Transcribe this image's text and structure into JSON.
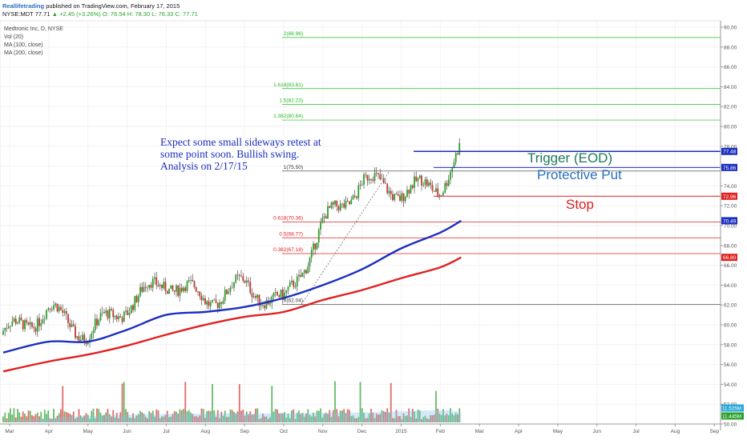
{
  "header": {
    "author": "Reallifetrading",
    "published": "published on TradingView.com, February 17, 2015",
    "symbol": "NYSE:MDT",
    "last": "77.71",
    "change": "▲ +2.45 (+3.26%)",
    "o": "O: 76.54",
    "h": "H: 78.30",
    "l": "L: 76.33",
    "c": "C: 77.71"
  },
  "legend": {
    "title": "Medtronic Inc, D, NYSE",
    "vol": "Vol (20)",
    "ma100": "MA (100, close)",
    "ma200": "MA (200, close)"
  },
  "annotation": "Expect some small sideways retest at some point soon. Bullish swing. Analysis on 2/17/15",
  "labels": {
    "trigger": "Trigger (EOD)",
    "put": "Protective Put",
    "stop": "Stop"
  },
  "fib_levels": [
    {
      "label": "2(88.96)",
      "value": 88.96,
      "color": "#22bb22"
    },
    {
      "label": "1.618(83.81)",
      "value": 83.81,
      "color": "#22bb22"
    },
    {
      "label": "1.5(82.23)",
      "value": 82.23,
      "color": "#22bb22"
    },
    {
      "label": "1.382(80.64)",
      "value": 80.64,
      "color": "#22bb22"
    },
    {
      "label": "1(75.50)",
      "value": 75.5,
      "color": "#333333"
    },
    {
      "label": "0.618(70.36)",
      "value": 70.36,
      "color": "#e02020"
    },
    {
      "label": "0.5(68.77)",
      "value": 68.77,
      "color": "#e02020"
    },
    {
      "label": "0.382(67.18)",
      "value": 67.18,
      "color": "#e02020"
    },
    {
      "label": "0(62.04)",
      "value": 62.04,
      "color": "#333333"
    }
  ],
  "price_tags": [
    {
      "text": "77.48",
      "value": 77.48,
      "color": "#1a2fbf"
    },
    {
      "text": "75.86",
      "value": 75.86,
      "color": "#1a2fbf"
    },
    {
      "text": "72.96",
      "value": 72.96,
      "color": "#e02020"
    },
    {
      "text": "70.49",
      "value": 70.49,
      "color": "#1a2fbf"
    },
    {
      "text": "66.80",
      "value": 66.8,
      "color": "#e02020"
    }
  ],
  "volume_tags": [
    {
      "text": "11.525M",
      "color": "#2aa8d8"
    },
    {
      "text": "11.445M",
      "color": "#2ca02c"
    }
  ],
  "chart_data": {
    "type": "line",
    "title": "Medtronic Inc, D, NYSE",
    "xlabel": "",
    "ylabel": "",
    "ylim": [
      50,
      90
    ],
    "y_ticks": [
      "50.00",
      "52.00",
      "54.00",
      "56.00",
      "58.00",
      "60.00",
      "62.00",
      "64.00",
      "66.00",
      "68.00",
      "70.00",
      "72.00",
      "74.00",
      "76.00",
      "78.00",
      "80.00",
      "82.00",
      "84.00",
      "86.00",
      "88.00",
      "90.00"
    ],
    "x_ticks": [
      "Mar",
      "Apr",
      "May",
      "Jun",
      "Jul",
      "Aug",
      "Sep",
      "Oct",
      "Nov",
      "Dec",
      "2015",
      "Feb",
      "Mar",
      "Apr",
      "May",
      "Jun",
      "Jul",
      "Aug",
      "Sep"
    ],
    "series": [
      {
        "name": "MA (100, close)",
        "color": "#1a2fbf",
        "x": [
          "Mar",
          "Apr",
          "May",
          "Jun",
          "Jul",
          "Aug",
          "Sep",
          "Oct",
          "Nov",
          "Dec",
          "2015",
          "Feb",
          "Feb 17"
        ],
        "values": [
          57.2,
          58.3,
          58.3,
          59.5,
          61.0,
          61.3,
          61.8,
          62.7,
          64.0,
          65.6,
          67.7,
          69.3,
          70.49
        ]
      },
      {
        "name": "MA (200, close)",
        "color": "#e02020",
        "x": [
          "Mar",
          "Apr",
          "May",
          "Jun",
          "Jul",
          "Aug",
          "Sep",
          "Oct",
          "Nov",
          "Dec",
          "2015",
          "Feb",
          "Feb 17"
        ],
        "values": [
          55.3,
          56.3,
          57.0,
          57.9,
          59.0,
          60.0,
          60.8,
          61.3,
          62.5,
          63.5,
          64.7,
          65.8,
          66.8
        ]
      }
    ],
    "price_path": {
      "x": [
        "Mar",
        "Apr",
        "May",
        "Jun",
        "Jul",
        "Aug",
        "Sep",
        "Oct",
        "Nov",
        "Dec",
        "2015",
        "Feb",
        "Feb 17"
      ],
      "values": [
        59.0,
        61.5,
        59.0,
        62.0,
        64.5,
        62.5,
        64.0,
        62.0,
        70.0,
        74.5,
        73.5,
        74.0,
        77.71
      ]
    }
  }
}
